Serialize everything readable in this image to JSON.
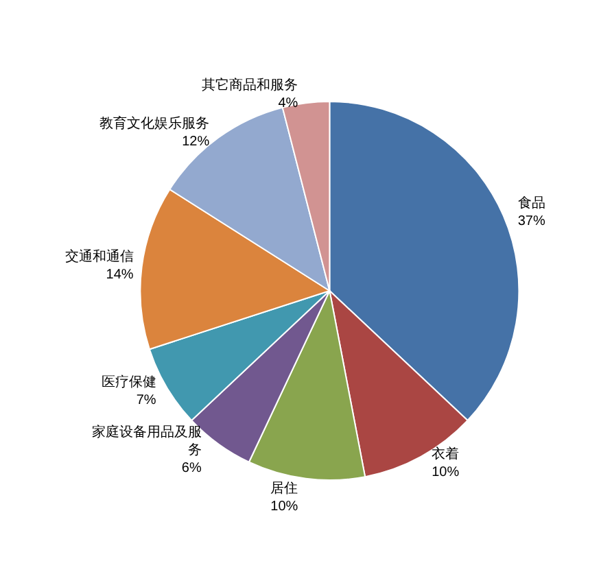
{
  "chart_data": {
    "type": "pie",
    "categories": [
      "食品",
      "衣着",
      "居住",
      "家庭设备用品及服务",
      "医疗保健",
      "交通和通信",
      "教育文化娱乐服务",
      "其它商品和服务"
    ],
    "values": [
      37,
      10,
      10,
      6,
      7,
      14,
      12,
      4
    ],
    "value_labels": [
      "37%",
      "10%",
      "10%",
      "6%",
      "7%",
      "14%",
      "12%",
      "4%"
    ],
    "colors": [
      "#4572a7",
      "#aa4643",
      "#89a54e",
      "#71588f",
      "#4198af",
      "#db843d",
      "#93a9cf",
      "#d19392"
    ],
    "legend": false
  }
}
